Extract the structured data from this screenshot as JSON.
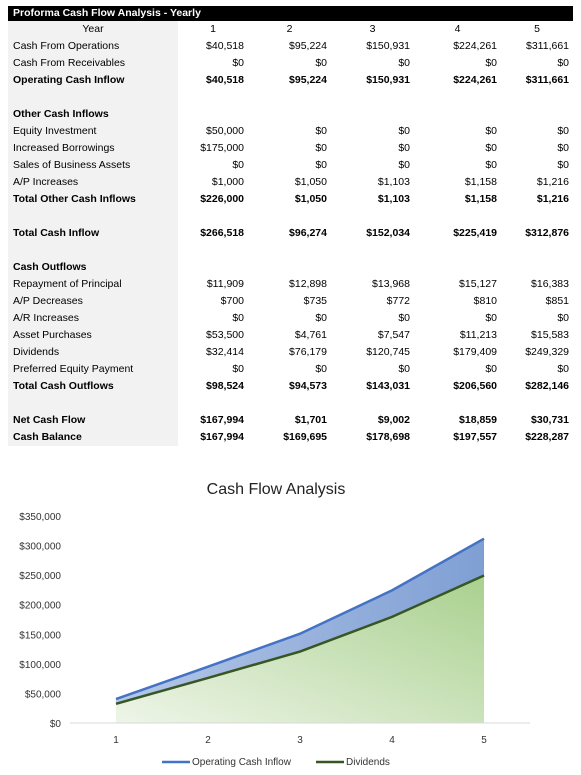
{
  "table": {
    "title": "Proforma Cash Flow Analysis - Yearly",
    "header": {
      "label": "Year",
      "years": [
        "1",
        "2",
        "3",
        "4",
        "5"
      ]
    },
    "rows": [
      {
        "label": "Cash From Operations",
        "values": [
          "$40,518",
          "$95,224",
          "$150,931",
          "$224,261",
          "$311,661"
        ],
        "bold": false
      },
      {
        "label": "Cash From Receivables",
        "values": [
          "$0",
          "$0",
          "$0",
          "$0",
          "$0"
        ],
        "bold": false
      },
      {
        "label": "Operating Cash Inflow",
        "values": [
          "$40,518",
          "$95,224",
          "$150,931",
          "$224,261",
          "$311,661"
        ],
        "bold": true
      },
      {
        "label": "",
        "values": [
          "",
          "",
          "",
          "",
          ""
        ],
        "bold": false
      },
      {
        "label": "Other Cash Inflows",
        "values": [
          "",
          "",
          "",
          "",
          ""
        ],
        "bold": true
      },
      {
        "label": "Equity Investment",
        "values": [
          "$50,000",
          "$0",
          "$0",
          "$0",
          "$0"
        ],
        "bold": false
      },
      {
        "label": "Increased Borrowings",
        "values": [
          "$175,000",
          "$0",
          "$0",
          "$0",
          "$0"
        ],
        "bold": false
      },
      {
        "label": "Sales of Business Assets",
        "values": [
          "$0",
          "$0",
          "$0",
          "$0",
          "$0"
        ],
        "bold": false
      },
      {
        "label": "A/P Increases",
        "values": [
          "$1,000",
          "$1,050",
          "$1,103",
          "$1,158",
          "$1,216"
        ],
        "bold": false
      },
      {
        "label": "Total Other Cash Inflows",
        "values": [
          "$226,000",
          "$1,050",
          "$1,103",
          "$1,158",
          "$1,216"
        ],
        "bold": true
      },
      {
        "label": "",
        "values": [
          "",
          "",
          "",
          "",
          ""
        ],
        "bold": false
      },
      {
        "label": "Total Cash Inflow",
        "values": [
          "$266,518",
          "$96,274",
          "$152,034",
          "$225,419",
          "$312,876"
        ],
        "bold": true
      },
      {
        "label": "",
        "values": [
          "",
          "",
          "",
          "",
          ""
        ],
        "bold": false
      },
      {
        "label": "Cash Outflows",
        "values": [
          "",
          "",
          "",
          "",
          ""
        ],
        "bold": true
      },
      {
        "label": "Repayment of Principal",
        "values": [
          "$11,909",
          "$12,898",
          "$13,968",
          "$15,127",
          "$16,383"
        ],
        "bold": false
      },
      {
        "label": "A/P Decreases",
        "values": [
          "$700",
          "$735",
          "$772",
          "$810",
          "$851"
        ],
        "bold": false
      },
      {
        "label": "A/R Increases",
        "values": [
          "$0",
          "$0",
          "$0",
          "$0",
          "$0"
        ],
        "bold": false
      },
      {
        "label": "Asset Purchases",
        "values": [
          "$53,500",
          "$4,761",
          "$7,547",
          "$11,213",
          "$15,583"
        ],
        "bold": false
      },
      {
        "label": "Dividends",
        "values": [
          "$32,414",
          "$76,179",
          "$120,745",
          "$179,409",
          "$249,329"
        ],
        "bold": false
      },
      {
        "label": "Preferred Equity Payment",
        "values": [
          "$0",
          "$0",
          "$0",
          "$0",
          "$0"
        ],
        "bold": false
      },
      {
        "label": "Total Cash Outflows",
        "values": [
          "$98,524",
          "$94,573",
          "$143,031",
          "$206,560",
          "$282,146"
        ],
        "bold": true
      },
      {
        "label": "",
        "values": [
          "",
          "",
          "",
          "",
          ""
        ],
        "bold": false
      },
      {
        "label": "Net Cash Flow",
        "values": [
          "$167,994",
          "$1,701",
          "$9,002",
          "$18,859",
          "$30,731"
        ],
        "bold": true
      },
      {
        "label": "Cash Balance",
        "values": [
          "$167,994",
          "$169,695",
          "$178,698",
          "$197,557",
          "$228,287"
        ],
        "bold": true
      }
    ]
  },
  "chart_data": {
    "type": "area",
    "title": "Cash Flow Analysis",
    "x": [
      1,
      2,
      3,
      4,
      5
    ],
    "series": [
      {
        "name": "Operating Cash Inflow",
        "values": [
          40518,
          95224,
          150931,
          224261,
          311661
        ],
        "color": "#4472c4"
      },
      {
        "name": "Dividends",
        "values": [
          32414,
          76179,
          120745,
          179409,
          249329
        ],
        "color": "#375623"
      }
    ],
    "ylim": [
      0,
      350000
    ],
    "yticks": [
      0,
      50000,
      100000,
      150000,
      200000,
      250000,
      300000,
      350000
    ],
    "ytick_labels": [
      "$0",
      "$50,000",
      "$100,000",
      "$150,000",
      "$200,000",
      "$250,000",
      "$300,000",
      "$350,000"
    ],
    "xtick_labels": [
      "1",
      "2",
      "3",
      "4",
      "5"
    ],
    "legend_position": "bottom",
    "grid": false,
    "fill_colors": {
      "top_band": "#8ea9db",
      "bottom_area": "#a9d08e"
    }
  }
}
